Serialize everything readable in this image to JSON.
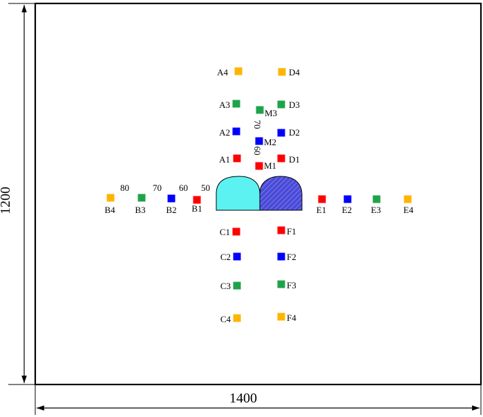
{
  "dimensions": {
    "width_label": "1400",
    "height_label": "1200"
  },
  "spacing_labels": {
    "horizontal": [
      "80",
      "70",
      "60",
      "50"
    ],
    "vertical": [
      "70",
      "60"
    ]
  },
  "colors": {
    "red": "#ff0000",
    "blue": "#0000ff",
    "green": "#1fa34a",
    "orange": "#ffb400",
    "tunnel_left": "#5cf2f2",
    "tunnel_right": "#4a4ad8",
    "line": "#000000"
  },
  "points": [
    {
      "id": "A4",
      "color": "orange"
    },
    {
      "id": "A3",
      "color": "green"
    },
    {
      "id": "A2",
      "color": "blue"
    },
    {
      "id": "A1",
      "color": "red"
    },
    {
      "id": "D4",
      "color": "orange"
    },
    {
      "id": "D3",
      "color": "green"
    },
    {
      "id": "D2",
      "color": "blue"
    },
    {
      "id": "D1",
      "color": "red"
    },
    {
      "id": "M3",
      "color": "green"
    },
    {
      "id": "M2",
      "color": "blue"
    },
    {
      "id": "M1",
      "color": "red"
    },
    {
      "id": "B4",
      "color": "orange"
    },
    {
      "id": "B3",
      "color": "green"
    },
    {
      "id": "B2",
      "color": "blue"
    },
    {
      "id": "B1",
      "color": "red"
    },
    {
      "id": "E1",
      "color": "red"
    },
    {
      "id": "E2",
      "color": "blue"
    },
    {
      "id": "E3",
      "color": "green"
    },
    {
      "id": "E4",
      "color": "orange"
    },
    {
      "id": "C1",
      "color": "red"
    },
    {
      "id": "C2",
      "color": "blue"
    },
    {
      "id": "C3",
      "color": "green"
    },
    {
      "id": "C4",
      "color": "orange"
    },
    {
      "id": "F1",
      "color": "red"
    },
    {
      "id": "F2",
      "color": "blue"
    },
    {
      "id": "F3",
      "color": "green"
    },
    {
      "id": "F4",
      "color": "orange"
    }
  ]
}
